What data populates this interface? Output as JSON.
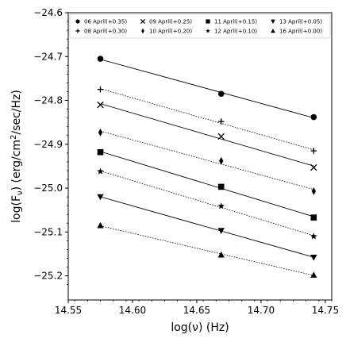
{
  "chart_data": {
    "type": "scatter",
    "xlabel": "log(ν) (Hz)",
    "ylabel": "log(F",
    "ylabel_sub": "ν",
    "ylabel_rest": ") (erg/cm",
    "ylabel_sup": "2",
    "ylabel_tail": "/sec/Hz)",
    "xlim": [
      14.55,
      14.755
    ],
    "ylim": [
      -25.255,
      -24.6
    ],
    "xticks": [
      14.55,
      14.6,
      14.65,
      14.7,
      14.75
    ],
    "xtick_labels": [
      "14.55",
      "14.60",
      "14.65",
      "14.70",
      "14.75"
    ],
    "yticks": [
      -24.6,
      -24.7,
      -24.8,
      -24.9,
      -25.0,
      -25.1,
      -25.2
    ],
    "ytick_labels": [
      "−24.6",
      "−24.7",
      "−24.8",
      "−24.9",
      "−25.0",
      "−25.1",
      "−25.2"
    ],
    "x": [
      14.575,
      14.669,
      14.741
    ],
    "legend_position": "top",
    "series": [
      {
        "name": "06 April(+0.35)",
        "marker": "circle",
        "line": "solid",
        "values": [
          -24.705,
          -24.785,
          -24.838
        ]
      },
      {
        "name": "08 April(+0.30)",
        "marker": "plus",
        "line": "dotted",
        "values": [
          -24.775,
          -24.848,
          -24.915
        ]
      },
      {
        "name": "09 April(+0.25)",
        "marker": "x",
        "line": "solid",
        "values": [
          -24.81,
          -24.882,
          -24.953
        ]
      },
      {
        "name": "10 April(+0.20)",
        "marker": "thin-diamond",
        "line": "dotted",
        "values": [
          -24.873,
          -24.938,
          -25.007
        ]
      },
      {
        "name": "11 April(+0.15)",
        "marker": "square",
        "line": "solid",
        "values": [
          -24.918,
          -24.997,
          -25.067
        ]
      },
      {
        "name": "12 April(+0.10)",
        "marker": "star",
        "line": "dotted",
        "values": [
          -24.962,
          -25.041,
          -25.11
        ]
      },
      {
        "name": "13 April(+0.05)",
        "marker": "triangle-down",
        "line": "solid",
        "values": [
          -25.02,
          -25.097,
          -25.158
        ]
      },
      {
        "name": "16 April(+0.00)",
        "marker": "triangle-up",
        "line": "dotted",
        "values": [
          -25.085,
          -25.152,
          -25.198
        ]
      }
    ]
  }
}
